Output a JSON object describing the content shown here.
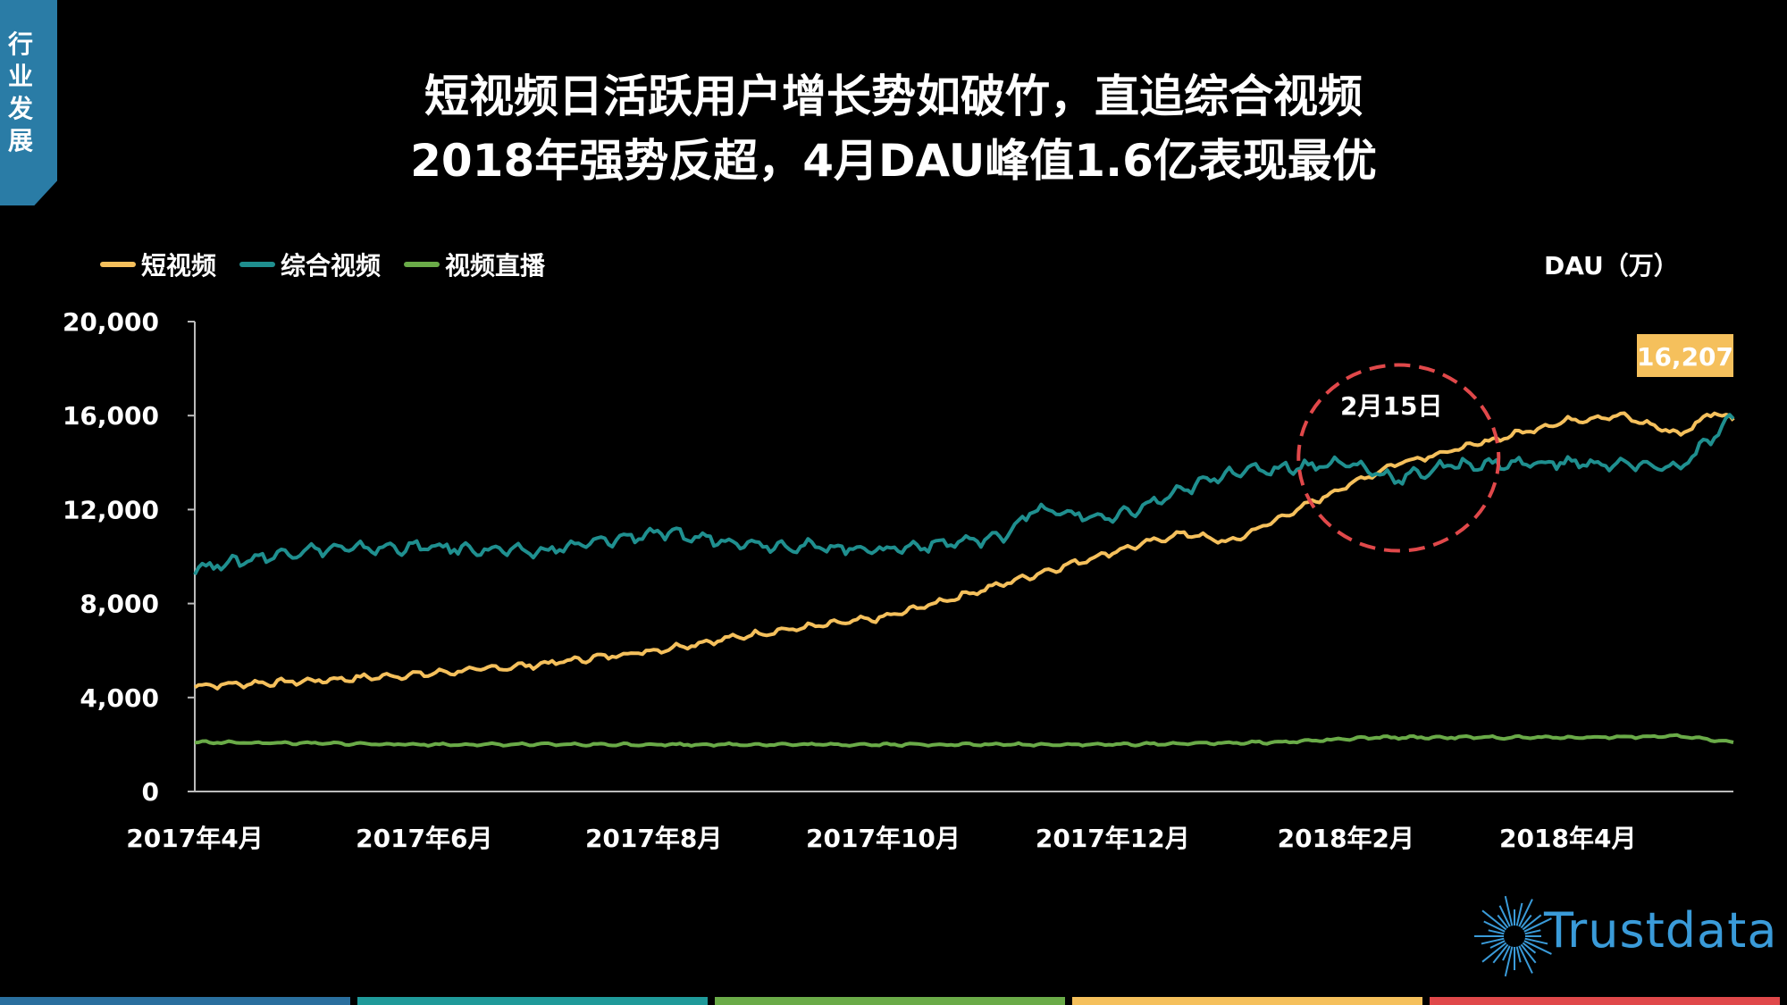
{
  "side_tab": {
    "label": "行\n业\n发\n展"
  },
  "title_line1": "短视频日活跃用户增长势如破竹，直追综合视频",
  "title_line2": "2018年强势反超，4月DAU峰值1.6亿表现最优",
  "unit_label": "DAU（万）",
  "logo_text": "Trustdata",
  "colors": {
    "short_video": "#f5c05c",
    "general_video": "#1f8f8f",
    "live_video": "#6aab48",
    "highlight_circle": "#e0484a",
    "callout_bg": "#f5c05c",
    "bottom_bar": [
      "#2a6f9e",
      "#1f9a9a",
      "#6aab48",
      "#f5c05c",
      "#e0484a"
    ]
  },
  "chart_data": {
    "type": "line",
    "title": "",
    "xlabel": "",
    "ylabel": "DAU（万）",
    "ylim": [
      0,
      20000
    ],
    "yticks": [
      0,
      4000,
      8000,
      12000,
      16000,
      20000
    ],
    "ytick_labels": [
      "0",
      "4,000",
      "8,000",
      "12,000",
      "16,000",
      "20,000"
    ],
    "x_tick_labels": [
      "2017年4月",
      "2017年6月",
      "2017年8月",
      "2017年10月",
      "2017年12月",
      "2018年2月",
      "2018年4月"
    ],
    "x_tick_dates": [
      "2017-04-01",
      "2017-06-01",
      "2017-08-01",
      "2017-10-01",
      "2017-12-01",
      "2018-02-01",
      "2018-04-01"
    ],
    "x_range": [
      "2017-04-01",
      "2018-05-15"
    ],
    "grid": false,
    "legend_position": "top-left",
    "series": [
      {
        "name": "短视频",
        "x": [
          "2017-04-01",
          "2017-05-01",
          "2017-06-01",
          "2017-07-01",
          "2017-08-01",
          "2017-09-01",
          "2017-10-01",
          "2017-11-01",
          "2017-12-01",
          "2017-12-20",
          "2018-01-01",
          "2018-02-01",
          "2018-02-15",
          "2018-03-01",
          "2018-04-01",
          "2018-04-15",
          "2018-05-01",
          "2018-05-10",
          "2018-05-15"
        ],
        "values": [
          4500,
          4700,
          5000,
          5400,
          6000,
          6800,
          7400,
          8800,
          10200,
          11000,
          10600,
          13000,
          14000,
          14500,
          15800,
          16000,
          15200,
          16207,
          15800
        ]
      },
      {
        "name": "综合视频",
        "x": [
          "2017-04-01",
          "2017-05-01",
          "2017-06-01",
          "2017-07-01",
          "2017-08-01",
          "2017-09-01",
          "2017-10-01",
          "2017-11-01",
          "2017-11-10",
          "2017-12-01",
          "2018-01-01",
          "2018-02-01",
          "2018-02-15",
          "2018-03-01",
          "2018-04-01",
          "2018-05-01",
          "2018-05-15"
        ],
        "values": [
          9500,
          10300,
          10400,
          10200,
          11000,
          10500,
          10300,
          10800,
          12000,
          11600,
          13600,
          14000,
          13300,
          13900,
          14000,
          13800,
          15900
        ]
      },
      {
        "name": "视频直播",
        "x": [
          "2017-04-01",
          "2017-06-01",
          "2017-08-01",
          "2017-10-01",
          "2017-12-01",
          "2018-01-15",
          "2018-02-10",
          "2018-03-01",
          "2018-04-01",
          "2018-05-01",
          "2018-05-15"
        ],
        "values": [
          2100,
          2000,
          2000,
          2000,
          2000,
          2100,
          2300,
          2300,
          2300,
          2350,
          2100
        ]
      }
    ],
    "annotations": [
      {
        "text": "2月15日",
        "date": "2018-02-15"
      },
      {
        "text": "16,207",
        "date": "2018-05-10",
        "value": 16207
      }
    ]
  }
}
